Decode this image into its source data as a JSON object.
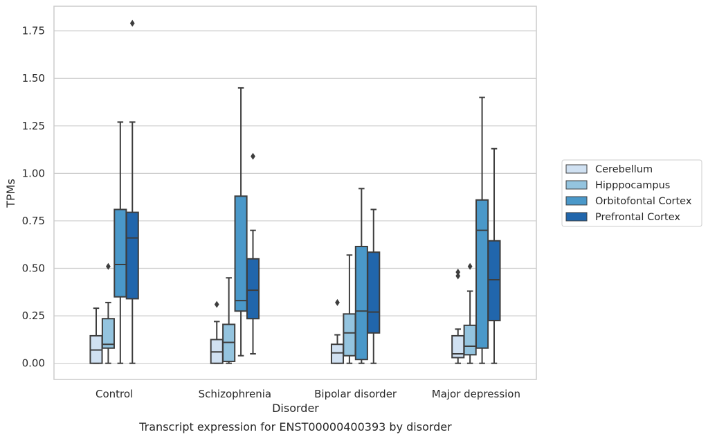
{
  "chart_data": {
    "type": "box",
    "caption": "Transcript expression for ENST00000400393 by disorder",
    "xlabel": "Disorder",
    "ylabel": "TPMs",
    "ylim": [
      -0.085,
      1.88
    ],
    "yticks": [
      "0.00",
      "0.25",
      "0.50",
      "0.75",
      "1.00",
      "1.25",
      "1.50",
      "1.75"
    ],
    "categories": [
      "Control",
      "Schizophrenia",
      "Bipolar disorder",
      "Major depression"
    ],
    "grid": "horizontal",
    "legend_position": "right",
    "series": [
      {
        "name": "Cerebellum",
        "color": "#d0e1f2",
        "boxes": [
          {
            "whislo": 0.0,
            "q1": 0.0,
            "med": 0.07,
            "q3": 0.145,
            "whishi": 0.29,
            "fliers": []
          },
          {
            "whislo": 0.0,
            "q1": 0.0,
            "med": 0.06,
            "q3": 0.125,
            "whishi": 0.22,
            "fliers": [
              0.31
            ]
          },
          {
            "whislo": 0.0,
            "q1": 0.0,
            "med": 0.055,
            "q3": 0.1,
            "whishi": 0.15,
            "fliers": [
              0.32
            ]
          },
          {
            "whislo": 0.0,
            "q1": 0.03,
            "med": 0.05,
            "q3": 0.145,
            "whishi": 0.18,
            "fliers": [
              0.46,
              0.48
            ]
          }
        ]
      },
      {
        "name": "Hipppocampus",
        "color": "#94c4df",
        "boxes": [
          {
            "whislo": 0.0,
            "q1": 0.08,
            "med": 0.1,
            "q3": 0.235,
            "whishi": 0.32,
            "fliers": [
              0.51
            ]
          },
          {
            "whislo": 0.0,
            "q1": 0.01,
            "med": 0.11,
            "q3": 0.205,
            "whishi": 0.45,
            "fliers": []
          },
          {
            "whislo": 0.0,
            "q1": 0.04,
            "med": 0.16,
            "q3": 0.26,
            "whishi": 0.57,
            "fliers": []
          },
          {
            "whislo": 0.0,
            "q1": 0.045,
            "med": 0.09,
            "q3": 0.2,
            "whishi": 0.38,
            "fliers": [
              0.51
            ]
          }
        ]
      },
      {
        "name": "Orbitofontal Cortex",
        "color": "#4a98c9",
        "boxes": [
          {
            "whislo": 0.0,
            "q1": 0.35,
            "med": 0.52,
            "q3": 0.81,
            "whishi": 1.27,
            "fliers": []
          },
          {
            "whislo": 0.04,
            "q1": 0.275,
            "med": 0.33,
            "q3": 0.88,
            "whishi": 1.45,
            "fliers": []
          },
          {
            "whislo": 0.0,
            "q1": 0.02,
            "med": 0.275,
            "q3": 0.615,
            "whishi": 0.92,
            "fliers": []
          },
          {
            "whislo": 0.0,
            "q1": 0.08,
            "med": 0.7,
            "q3": 0.86,
            "whishi": 1.4,
            "fliers": []
          }
        ]
      },
      {
        "name": "Prefrontal Cortex",
        "color": "#2166ac",
        "boxes": [
          {
            "whislo": 0.0,
            "q1": 0.34,
            "med": 0.66,
            "q3": 0.795,
            "whishi": 1.27,
            "fliers": [
              1.79
            ]
          },
          {
            "whislo": 0.05,
            "q1": 0.235,
            "med": 0.385,
            "q3": 0.55,
            "whishi": 0.7,
            "fliers": [
              1.09
            ]
          },
          {
            "whislo": 0.0,
            "q1": 0.16,
            "med": 0.27,
            "q3": 0.585,
            "whishi": 0.81,
            "fliers": []
          },
          {
            "whislo": 0.0,
            "q1": 0.225,
            "med": 0.44,
            "q3": 0.645,
            "whishi": 1.13,
            "fliers": []
          }
        ]
      }
    ]
  }
}
